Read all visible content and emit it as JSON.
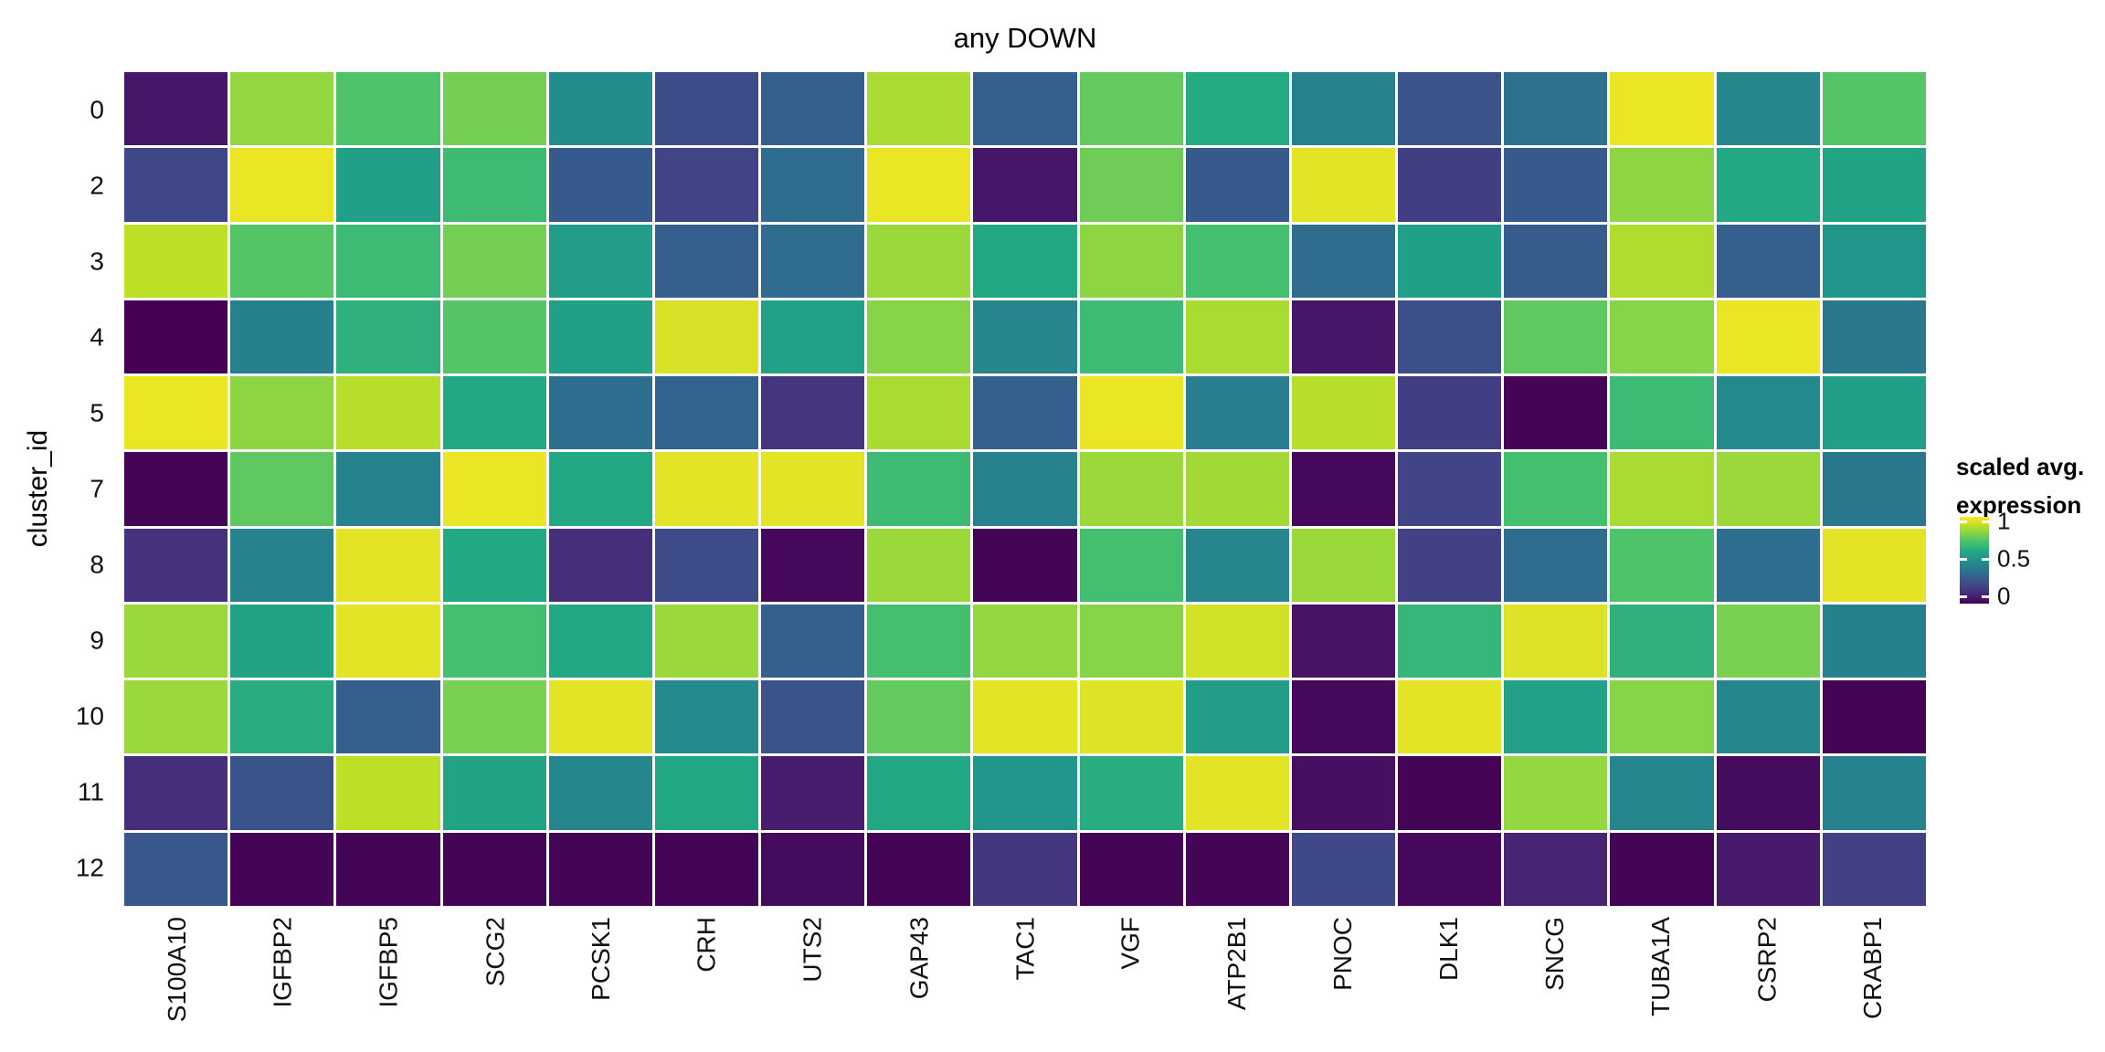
{
  "title": "any DOWN",
  "y_axis_title": "cluster_id",
  "legend": {
    "title_lines": [
      "scaled avg.",
      "expression"
    ],
    "ticks": [
      {
        "label": "1",
        "value": 1.0
      },
      {
        "label": "0.5",
        "value": 0.5
      },
      {
        "label": "0",
        "value": 0.0
      }
    ]
  },
  "colors": {
    "background": "#ffffff",
    "tile_border": "#ffffff",
    "text": "#111111",
    "viridis_stops": [
      [
        0.0,
        "#440154"
      ],
      [
        0.1,
        "#482475"
      ],
      [
        0.2,
        "#414487"
      ],
      [
        0.3,
        "#355f8d"
      ],
      [
        0.4,
        "#2a788e"
      ],
      [
        0.5,
        "#21918c"
      ],
      [
        0.6,
        "#22a884"
      ],
      [
        0.7,
        "#44bf70"
      ],
      [
        0.8,
        "#7ad151"
      ],
      [
        0.9,
        "#bddf26"
      ],
      [
        1.0,
        "#fde725"
      ]
    ]
  },
  "chart_data": {
    "type": "heatmap",
    "title": "any DOWN",
    "xlabel": "",
    "ylabel": "cluster_id",
    "legend_title": "scaled avg. expression",
    "legend_position": "right",
    "colormap": "viridis",
    "scale": {
      "min": 0,
      "max": 1,
      "ticks": [
        1,
        0.5,
        0
      ]
    },
    "columns": [
      "S100A10",
      "IGFBP2",
      "IGFBP5",
      "SCG2",
      "PCSK1",
      "CRH",
      "UTS2",
      "GAP43",
      "TAC1",
      "VGF",
      "ATP2B1",
      "PNOC",
      "DLK1",
      "SNCG",
      "TUBA1A",
      "CSRP2",
      "CRABP1"
    ],
    "rows": [
      "0",
      "2",
      "3",
      "4",
      "5",
      "7",
      "8",
      "9",
      "10",
      "11",
      "12"
    ],
    "values": [
      [
        0.06,
        0.84,
        0.72,
        0.79,
        0.48,
        0.23,
        0.3,
        0.87,
        0.3,
        0.76,
        0.61,
        0.44,
        0.25,
        0.37,
        0.97,
        0.45,
        0.73
      ],
      [
        0.21,
        0.97,
        0.56,
        0.68,
        0.28,
        0.2,
        0.35,
        0.97,
        0.06,
        0.78,
        0.28,
        0.96,
        0.18,
        0.28,
        0.83,
        0.6,
        0.58
      ],
      [
        0.9,
        0.73,
        0.68,
        0.79,
        0.55,
        0.3,
        0.35,
        0.85,
        0.6,
        0.83,
        0.7,
        0.35,
        0.56,
        0.29,
        0.88,
        0.3,
        0.52
      ],
      [
        0.0,
        0.43,
        0.64,
        0.73,
        0.56,
        0.94,
        0.57,
        0.82,
        0.45,
        0.68,
        0.87,
        0.06,
        0.24,
        0.75,
        0.82,
        0.97,
        0.4
      ],
      [
        0.97,
        0.83,
        0.89,
        0.6,
        0.36,
        0.32,
        0.15,
        0.87,
        0.3,
        0.97,
        0.42,
        0.89,
        0.18,
        0.01,
        0.68,
        0.47,
        0.56
      ],
      [
        0.01,
        0.75,
        0.44,
        0.97,
        0.6,
        0.96,
        0.96,
        0.68,
        0.44,
        0.85,
        0.86,
        0.02,
        0.2,
        0.7,
        0.87,
        0.85,
        0.4
      ],
      [
        0.14,
        0.44,
        0.96,
        0.6,
        0.13,
        0.23,
        0.02,
        0.85,
        0.01,
        0.7,
        0.45,
        0.85,
        0.19,
        0.35,
        0.72,
        0.36,
        0.96
      ],
      [
        0.85,
        0.58,
        0.96,
        0.7,
        0.6,
        0.85,
        0.3,
        0.7,
        0.84,
        0.82,
        0.93,
        0.05,
        0.66,
        0.95,
        0.64,
        0.8,
        0.43
      ],
      [
        0.85,
        0.62,
        0.3,
        0.8,
        0.96,
        0.47,
        0.26,
        0.76,
        0.96,
        0.95,
        0.55,
        0.02,
        0.96,
        0.57,
        0.82,
        0.46,
        0.01
      ],
      [
        0.13,
        0.26,
        0.9,
        0.58,
        0.46,
        0.6,
        0.08,
        0.6,
        0.52,
        0.62,
        0.96,
        0.04,
        0.01,
        0.84,
        0.46,
        0.03,
        0.44
      ],
      [
        0.27,
        0.01,
        0.01,
        0.01,
        0.01,
        0.01,
        0.03,
        0.01,
        0.16,
        0.01,
        0.01,
        0.22,
        0.02,
        0.1,
        0.01,
        0.07,
        0.19
      ]
    ]
  }
}
